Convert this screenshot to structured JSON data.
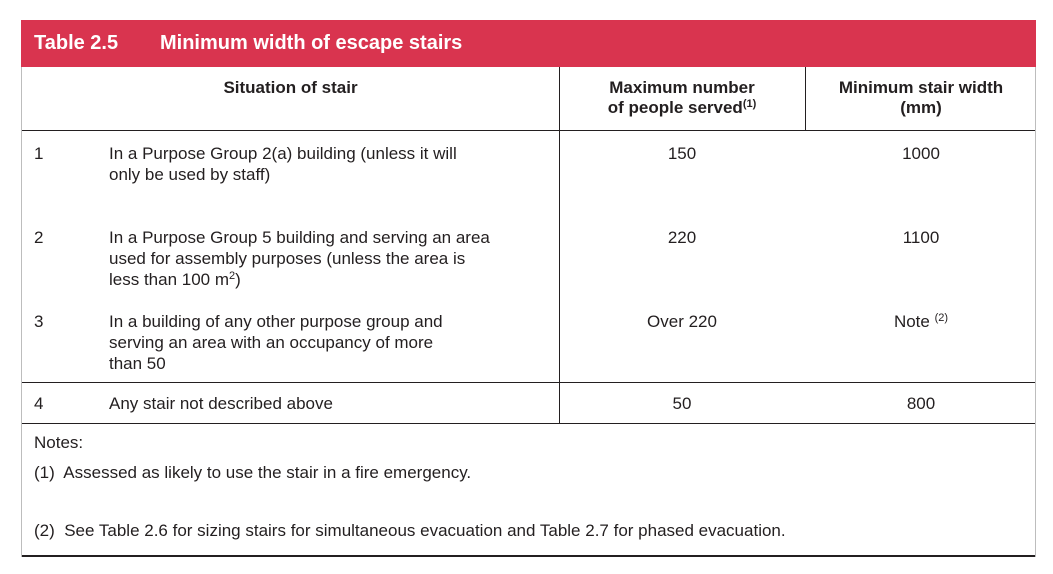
{
  "table": {
    "number": "Table 2.5",
    "title": "Minimum width of escape stairs",
    "headers": {
      "situation": "Situation of stair",
      "max_people": "Maximum number of people served",
      "max_people_note_ref": "(1)",
      "min_width_line1": "Minimum stair width",
      "min_width_line2": "(mm)"
    },
    "rows": [
      {
        "num": "1",
        "situation": "In a Purpose Group 2(a) building (unless it will only be used by staff)",
        "max_people": "150",
        "min_width": "1000"
      },
      {
        "num": "2",
        "situation_pre": "In a Purpose Group 5 building and serving an area used for assembly purposes (unless the area is less than 100 m",
        "situation_sup": "2",
        "situation_post": ")",
        "max_people": "220",
        "min_width": "1100"
      },
      {
        "num": "3",
        "situation": "In a building of any other purpose group and serving an area with an occupancy of more than 50",
        "max_people": "Over 220",
        "min_width": "Note",
        "min_width_note_ref": "(2)"
      },
      {
        "num": "4",
        "situation": "Any stair not described above",
        "max_people": "50",
        "min_width": "800"
      }
    ],
    "notes": {
      "heading": "Notes:",
      "items": [
        "(1)  Assessed as likely to use the stair in a fire emergency.",
        "(2)  See Table 2.6 for sizing stairs for simultaneous evacuation and Table 2.7 for phased evacuation."
      ]
    }
  }
}
